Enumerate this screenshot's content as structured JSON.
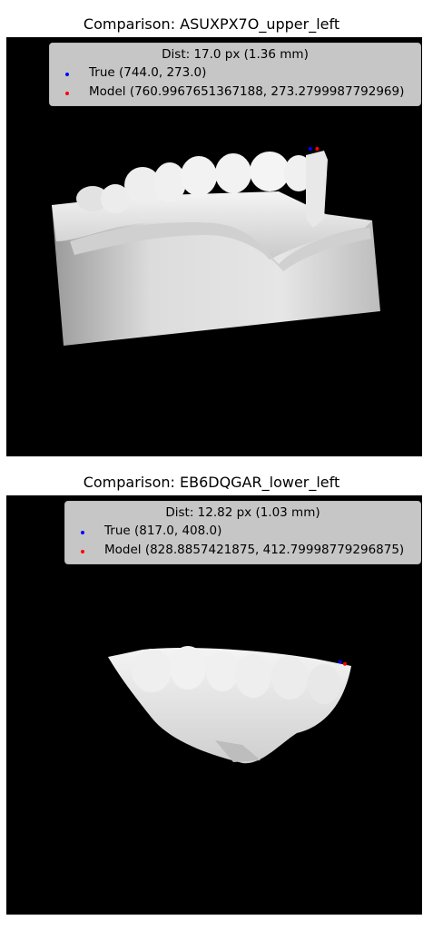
{
  "panels": [
    {
      "title": "Comparison: ASUXPX7O_upper_left",
      "legend_title": "Dist: 17.0 px (1.36 mm)",
      "legend": [
        {
          "label": "True (744.0, 273.0)",
          "color": "#0000ff"
        },
        {
          "label": "Model (760.9967651367188, 273.2799987792969)",
          "color": "#ff0000"
        }
      ]
    },
    {
      "title": "Comparison: EB6DQGAR_lower_left",
      "legend_title": "Dist: 12.82 px (1.03 mm)",
      "legend": [
        {
          "label": "True (817.0, 408.0)",
          "color": "#0000ff"
        },
        {
          "label": "Model (828.8857421875, 412.79998779296875)",
          "color": "#ff0000"
        }
      ]
    }
  ],
  "chart_data": [
    {
      "type": "scatter",
      "title": "Comparison: ASUXPX7O_upper_left",
      "series": [
        {
          "name": "True (744.0, 273.0)",
          "x": [
            744.0
          ],
          "y": [
            273.0
          ],
          "color": "#0000ff"
        },
        {
          "name": "Model (760.9967651367188, 273.2799987792969)",
          "x": [
            760.9967651367188
          ],
          "y": [
            273.2799987792969
          ],
          "color": "#ff0000"
        }
      ],
      "grid": false,
      "legend": "top-right"
    },
    {
      "type": "scatter",
      "title": "Comparison: EB6DQGAR_lower_left",
      "series": [
        {
          "name": "True (817.0, 408.0)",
          "x": [
            817.0
          ],
          "y": [
            408.0
          ],
          "color": "#0000ff"
        },
        {
          "name": "Model (828.8857421875, 412.79998779296875)",
          "x": [
            828.8857421875
          ],
          "y": [
            412.79998779296875
          ],
          "color": "#ff0000"
        }
      ],
      "grid": false,
      "legend": "top-right"
    }
  ]
}
